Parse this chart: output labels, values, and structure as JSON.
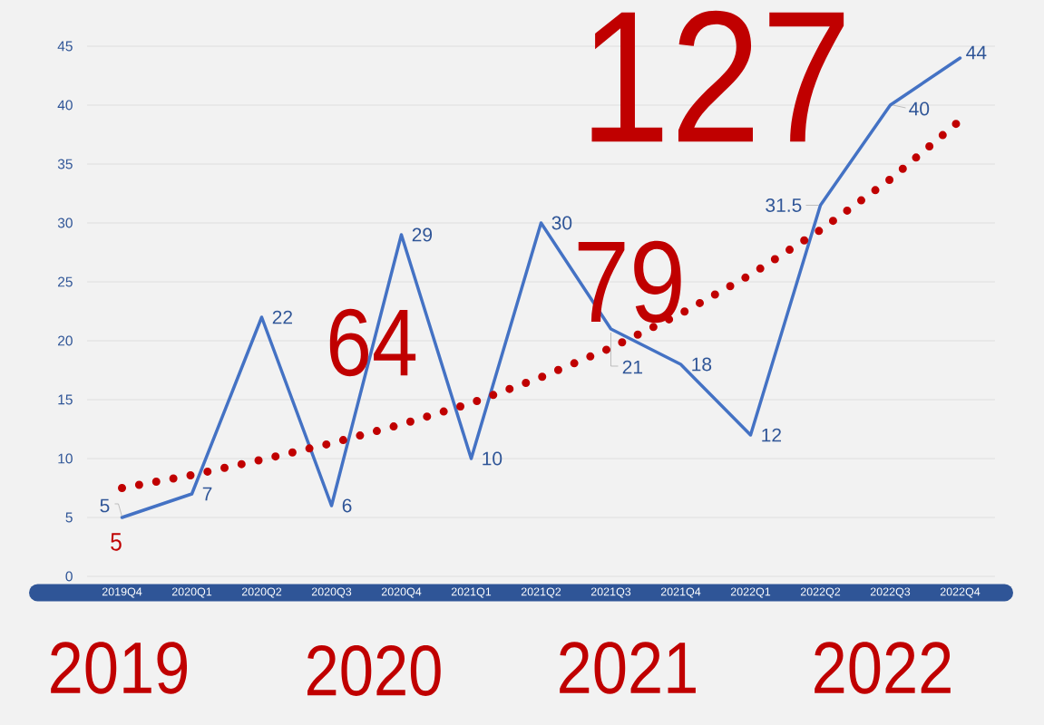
{
  "chart_data": {
    "type": "line",
    "categories": [
      "2019Q4",
      "2020Q1",
      "2020Q2",
      "2020Q3",
      "2020Q4",
      "2021Q1",
      "2021Q2",
      "2021Q3",
      "2021Q4",
      "2022Q1",
      "2022Q2",
      "2022Q3",
      "2022Q4"
    ],
    "series": [
      {
        "color": "#4472c4",
        "line_style": "solid",
        "values": [
          5,
          7,
          22,
          6,
          29,
          10,
          30,
          21,
          18,
          12,
          31.5,
          40,
          44
        ],
        "value_labels": [
          "5",
          "7",
          "22",
          "6",
          "29",
          "10",
          "30",
          "21",
          "18",
          "12",
          "31.5",
          "40",
          "44"
        ]
      },
      {
        "color": "#c00000",
        "line_style": "dotted",
        "values": [
          7.5,
          8.6,
          9.9,
          11.3,
          12.9,
          14.7,
          16.9,
          19.4,
          22.3,
          25.6,
          29.4,
          33.7,
          38.7
        ]
      }
    ],
    "ylim": [
      0,
      45
    ],
    "yticks": [
      0,
      5,
      10,
      15,
      20,
      25,
      30,
      35,
      40,
      45
    ],
    "grid": "y",
    "annotations": [
      "5",
      "64",
      "79",
      "127",
      "2019",
      "2020",
      "2021",
      "2022"
    ]
  }
}
